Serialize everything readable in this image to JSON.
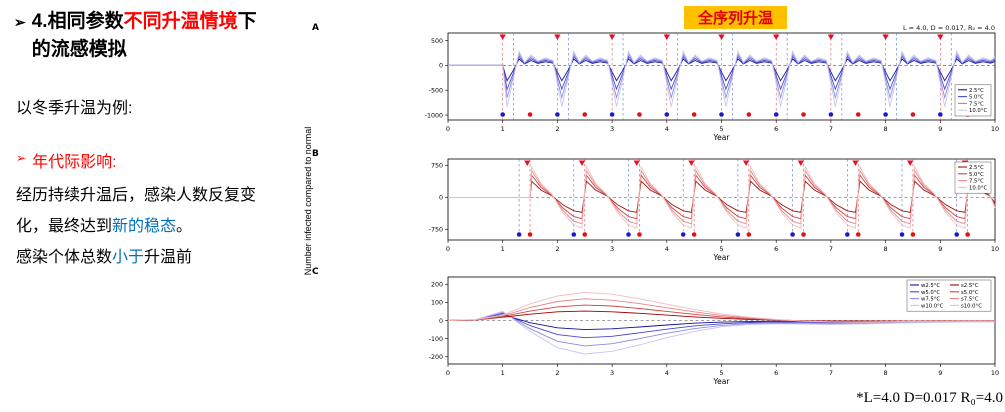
{
  "slide": {
    "heading": {
      "bullet": "➢",
      "pre": "4.相同参数",
      "highlight": "不同升温情境",
      "post": "下",
      "line2": "的流感模拟"
    },
    "example": "以冬季升温为例:",
    "bullet2": {
      "bullet": "➢",
      "text": "年代际影响:"
    },
    "para": {
      "l1": "经历持续升温后，感染人数反复变",
      "l2_pre": "化，最终达到",
      "l2_hl": "新的稳态",
      "l2_post": "。",
      "l3_pre": "感染个体总数",
      "l3_hl": "小于",
      "l3_post": "升温前"
    },
    "colors": {
      "highlight_red": "#FF0000",
      "highlight_blue": "#0070C0",
      "chip_bg": "#FFC000",
      "chip_text": "#E00000"
    }
  },
  "figure": {
    "title": "全序列升温",
    "ylabel": "Number infected compared to normal",
    "footnote": "*L=4.0 D=0.017 R₀=4.0"
  },
  "chart_data": [
    {
      "panel": "A",
      "type": "line",
      "annotation": "L = 4.0, D = 0.017, R₀ = 4.0",
      "xlabel": "Year",
      "xlim": [
        0,
        10
      ],
      "xticks": [
        0,
        1,
        2,
        3,
        4,
        5,
        6,
        7,
        8,
        9,
        10
      ],
      "ylim": [
        -1100,
        650
      ],
      "yticks": [
        500,
        0,
        -500,
        -1000
      ],
      "zero_line": true,
      "grid": false,
      "shape": "dip-rebound",
      "event_years": [
        1,
        2,
        3,
        4,
        5,
        6,
        7,
        8,
        9
      ],
      "series": [
        {
          "name": "2.5°C",
          "color": "#18189d",
          "trough": -310,
          "peak": 130
        },
        {
          "name": "5.0°C",
          "color": "#4a4ace",
          "trough": -480,
          "peak": 180
        },
        {
          "name": "7.5°C",
          "color": "#8d8de3",
          "trough": -650,
          "peak": 230
        },
        {
          "name": "10.0°C",
          "color": "#c7c7f3",
          "trough": -830,
          "peak": 280
        }
      ],
      "legend": {
        "position": "bottom-right",
        "columns": 1
      },
      "triangles_x": [
        1,
        2,
        3,
        4,
        5,
        6,
        7,
        8,
        9
      ],
      "dot_blue_x": [
        1,
        2,
        3,
        4,
        5,
        6,
        7,
        8,
        9
      ],
      "dot_red_x": [
        1.5,
        2.5,
        3.5,
        4.5,
        5.5,
        6.5,
        7.5,
        8.5,
        9.5
      ],
      "vline_red_x": [
        1,
        2,
        3,
        4,
        5,
        6,
        7,
        8,
        9
      ],
      "vline_blue_x": [
        1.2,
        2.2,
        3.2,
        4.2,
        5.2,
        6.2,
        7.2,
        8.2,
        9.2
      ]
    },
    {
      "panel": "B",
      "type": "line",
      "annotation": "",
      "xlabel": "Year",
      "xlim": [
        0,
        10
      ],
      "xticks": [
        0,
        1,
        2,
        3,
        4,
        5,
        6,
        7,
        8,
        9,
        10
      ],
      "ylim": [
        -1000,
        900
      ],
      "yticks": [
        750,
        0,
        -750
      ],
      "zero_line": true,
      "grid": false,
      "shape": "spike-decay",
      "event_years": [
        1.5,
        2.5,
        3.5,
        4.5,
        5.5,
        6.5,
        7.5,
        8.5,
        9.5
      ],
      "series": [
        {
          "name": "2.5°C",
          "color": "#9d0f0f",
          "trough": -350,
          "peak": 380
        },
        {
          "name": "5.0°C",
          "color": "#ce4343",
          "trough": -500,
          "peak": 520
        },
        {
          "name": "7.5°C",
          "color": "#e38888",
          "trough": -620,
          "peak": 630
        },
        {
          "name": "10.0°C",
          "color": "#f3bfbf",
          "trough": -720,
          "peak": 720
        }
      ],
      "legend": {
        "position": "top-right",
        "columns": 1
      },
      "triangles_x": [
        1.45,
        2.45,
        3.45,
        4.45,
        5.45,
        6.45,
        7.45,
        8.45,
        9.45
      ],
      "dot_blue_x": [
        1.3,
        2.3,
        3.3,
        4.3,
        5.3,
        6.3,
        7.3,
        8.3,
        9.3
      ],
      "dot_red_x": [
        1.5,
        2.5,
        3.5,
        4.5,
        5.5,
        6.5,
        7.5,
        8.5,
        9.5
      ],
      "vline_blue_x": [
        1.3,
        2.3,
        3.3,
        4.3,
        5.3,
        6.3,
        7.3,
        8.3,
        9.3
      ],
      "vline_red_x": [
        1.5,
        2.5,
        3.5,
        4.5,
        5.5,
        6.5,
        7.5,
        8.5,
        9.5
      ]
    },
    {
      "panel": "C",
      "type": "line",
      "annotation": "",
      "xlabel": "Year",
      "xlim": [
        0,
        10
      ],
      "xticks": [
        0,
        1,
        2,
        3,
        4,
        5,
        6,
        7,
        8,
        9,
        10
      ],
      "ylim": [
        -240,
        240
      ],
      "yticks": [
        200,
        100,
        0,
        -100,
        -200
      ],
      "zero_line": true,
      "grid": false,
      "shape": "points",
      "x": [
        0,
        0.5,
        1,
        1.5,
        2,
        2.5,
        3,
        3.5,
        4,
        4.5,
        5,
        5.5,
        6,
        6.5,
        7,
        7.5,
        8,
        8.5,
        9,
        9.5,
        10
      ],
      "series": [
        {
          "name": "w2.5°C",
          "color": "#0f0f9e",
          "values": [
            0,
            2,
            32,
            -12,
            -40,
            -50,
            -46,
            -36,
            -25,
            -15,
            -9,
            -6,
            -4,
            -5,
            -6,
            -6,
            -4,
            -3,
            -3,
            -2,
            -2
          ]
        },
        {
          "name": "w5.0°C",
          "color": "#4848cf",
          "values": [
            0,
            3,
            40,
            -28,
            -78,
            -95,
            -87,
            -68,
            -48,
            -30,
            -18,
            -11,
            -9,
            -10,
            -12,
            -11,
            -8,
            -6,
            -5,
            -5,
            -4
          ]
        },
        {
          "name": "w7.5°C",
          "color": "#8a8ae2",
          "values": [
            0,
            4,
            45,
            -45,
            -115,
            -140,
            -128,
            -100,
            -70,
            -45,
            -27,
            -17,
            -13,
            -15,
            -17,
            -15,
            -12,
            -9,
            -8,
            -7,
            -6
          ]
        },
        {
          "name": "w10.0°C",
          "color": "#c4c4f2",
          "values": [
            0,
            5,
            50,
            -60,
            -150,
            -185,
            -170,
            -135,
            -95,
            -60,
            -35,
            -22,
            -18,
            -20,
            -22,
            -20,
            -16,
            -12,
            -10,
            -9,
            -8
          ]
        },
        {
          "name": "s2.5°C",
          "color": "#a00000",
          "values": [
            0,
            2,
            18,
            35,
            48,
            52,
            48,
            40,
            30,
            20,
            12,
            6,
            2,
            -1,
            -3,
            -3,
            -2,
            -2,
            -1,
            -1,
            -1
          ]
        },
        {
          "name": "s5.0°C",
          "color": "#d44040",
          "values": [
            0,
            3,
            22,
            52,
            75,
            85,
            80,
            66,
            50,
            34,
            20,
            10,
            3,
            -2,
            -5,
            -5,
            -4,
            -3,
            -2,
            -2,
            -1
          ]
        },
        {
          "name": "s7.5°C",
          "color": "#e58585",
          "values": [
            0,
            4,
            26,
            72,
            105,
            120,
            112,
            93,
            70,
            48,
            28,
            14,
            5,
            -3,
            -7,
            -8,
            -6,
            -4,
            -3,
            -2,
            -2
          ]
        },
        {
          "name": "s10.0°C",
          "color": "#f3bcbc",
          "values": [
            0,
            5,
            30,
            92,
            135,
            155,
            145,
            120,
            90,
            61,
            36,
            18,
            6,
            -4,
            -9,
            -10,
            -8,
            -6,
            -4,
            -3,
            -2
          ]
        }
      ],
      "legend": {
        "position": "top-right",
        "columns": 2
      }
    }
  ]
}
